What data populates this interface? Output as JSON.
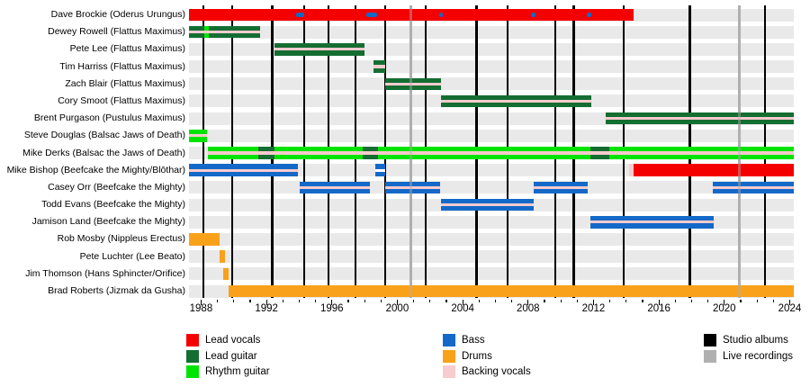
{
  "chart_data": {
    "type": "bar",
    "subtype": "gantt-membership-timeline",
    "description": "Band members timeline with instrument roles, studio album and live recording release lines",
    "x_axis": {
      "min": 1987.26,
      "max": 2024.25,
      "tick_years_start": 1988,
      "tick_years_end": 2024,
      "major_tick_step": 4,
      "minor_tick_step": 1,
      "major_tick_labels": [
        "1988",
        "1992",
        "1996",
        "2000",
        "2004",
        "2008",
        "2012",
        "2016",
        "2020",
        "2024"
      ]
    },
    "colors": {
      "lead_vocals": "#f40000",
      "lead_guitar": "#146e32",
      "rhythm_guitar": "#00e400",
      "bass": "#1469c8",
      "drums": "#f9a11b",
      "backing_vocals": "#f8cbce",
      "studio_albums": "#000000",
      "live_recordings": "#b0b0b0",
      "white": "#ffffff",
      "row_band": "#e9e9e9"
    },
    "members": [
      {
        "label": "Dave Brockie (Oderus Urungus)",
        "segments": [
          {
            "role": "lead_vocals",
            "start": 1987.26,
            "end": 2014.45
          }
        ],
        "overlays": [],
        "marks": [
          {
            "role": "bass",
            "start": 1993.8,
            "end": 1994.3
          },
          {
            "role": "bass",
            "start": 1998.1,
            "end": 1998.75
          },
          {
            "role": "bass",
            "start": 2002.55,
            "end": 2002.8
          },
          {
            "role": "bass",
            "start": 2008.2,
            "end": 2008.45
          },
          {
            "role": "bass",
            "start": 2011.6,
            "end": 2011.85
          }
        ]
      },
      {
        "label": "Dewey Rowell (Flattus Maximus)",
        "segments": [
          {
            "role": "lead_guitar",
            "start": 1987.26,
            "end": 1991.6,
            "stripe": "backing_vocals"
          }
        ],
        "overlays": [
          {
            "role": "rhythm_guitar",
            "start": 1988.2,
            "end": 1988.45
          }
        ],
        "marks": []
      },
      {
        "label": "Pete Lee (Flattus Maximus)",
        "segments": [
          {
            "role": "lead_guitar",
            "start": 1992.5,
            "end": 1998.0,
            "stripe": "backing_vocals"
          }
        ],
        "overlays": [],
        "marks": []
      },
      {
        "label": "Tim Harriss (Flattus Maximus)",
        "segments": [
          {
            "role": "lead_guitar",
            "start": 1998.55,
            "end": 1999.25,
            "stripe": "backing_vocals"
          }
        ],
        "overlays": [],
        "marks": []
      },
      {
        "label": "Zach Blair (Flattus Maximus)",
        "segments": [
          {
            "role": "lead_guitar",
            "start": 1999.25,
            "end": 2002.65,
            "stripe": "backing_vocals"
          }
        ],
        "overlays": [],
        "marks": []
      },
      {
        "label": "Cory Smoot (Flattus Maximus)",
        "segments": [
          {
            "role": "lead_guitar",
            "start": 2002.65,
            "end": 2011.85,
            "stripe": "backing_vocals"
          }
        ],
        "overlays": [],
        "marks": []
      },
      {
        "label": "Brent Purgason (Pustulus Maximus)",
        "segments": [
          {
            "role": "lead_guitar",
            "start": 2012.75,
            "end": 2024.25,
            "stripe": "backing_vocals"
          }
        ],
        "overlays": [],
        "marks": []
      },
      {
        "label": "Steve Douglas (Balsac Jaws of Death)",
        "segments": [
          {
            "role": "rhythm_guitar",
            "start": 1987.26,
            "end": 1988.35,
            "stripe": "backing_vocals"
          }
        ],
        "overlays": [],
        "marks": []
      },
      {
        "label": "Mike Derks (Balsac the Jaws of Death)",
        "segments": [
          {
            "role": "rhythm_guitar",
            "start": 1988.4,
            "end": 2024.25,
            "stripe": "backing_vocals"
          }
        ],
        "overlays": [
          {
            "role": "lead_guitar",
            "start": 1991.5,
            "end": 1992.5
          },
          {
            "role": "lead_guitar",
            "start": 1997.9,
            "end": 1998.8
          },
          {
            "role": "lead_guitar",
            "start": 2011.8,
            "end": 2012.95
          }
        ],
        "marks": []
      },
      {
        "label": "Mike Bishop (Beefcake the Mighty/Blōthar)",
        "segments": [
          {
            "role": "bass",
            "start": 1987.26,
            "end": 1993.9,
            "stripe": "backing_vocals"
          },
          {
            "role": "bass",
            "start": 1998.65,
            "end": 1999.25,
            "stripe": "white"
          },
          {
            "role": "backing_vocals",
            "start": 2014.2,
            "end": 2014.45
          },
          {
            "role": "lead_vocals",
            "start": 2014.45,
            "end": 2024.25
          }
        ],
        "overlays": [],
        "marks": []
      },
      {
        "label": "Casey Orr (Beefcake the Mighty)",
        "segments": [
          {
            "role": "bass",
            "start": 1994.05,
            "end": 1998.3,
            "stripe": "backing_vocals"
          },
          {
            "role": "bass",
            "start": 1999.25,
            "end": 2002.6,
            "stripe": "backing_vocals"
          },
          {
            "role": "bass",
            "start": 2008.35,
            "end": 2011.65,
            "stripe": "backing_vocals"
          },
          {
            "role": "bass",
            "start": 2019.3,
            "end": 2024.25,
            "stripe": "backing_vocals"
          }
        ],
        "overlays": [],
        "marks": []
      },
      {
        "label": "Todd Evans (Beefcake the Mighty)",
        "segments": [
          {
            "role": "bass",
            "start": 2002.65,
            "end": 2008.35,
            "stripe": "backing_vocals"
          }
        ],
        "overlays": [],
        "marks": []
      },
      {
        "label": "Jamison Land (Beefcake the Mighty)",
        "segments": [
          {
            "role": "bass",
            "start": 2011.8,
            "end": 2019.35,
            "stripe": "backing_vocals"
          }
        ],
        "overlays": [],
        "marks": []
      },
      {
        "label": "Rob Mosby (Nippleus Erectus)",
        "segments": [
          {
            "role": "drums",
            "start": 1987.26,
            "end": 1989.15
          }
        ],
        "overlays": [],
        "marks": []
      },
      {
        "label": "Pete Luchter (Lee Beato)",
        "segments": [
          {
            "role": "drums",
            "start": 1989.15,
            "end": 1989.45
          }
        ],
        "overlays": [],
        "marks": []
      },
      {
        "label": "Jim Thomson (Hans Sphincter/Orifice)",
        "segments": [
          {
            "role": "drums",
            "start": 1989.35,
            "end": 1989.7
          }
        ],
        "overlays": [],
        "marks": []
      },
      {
        "label": "Brad Roberts (Jizmak da Gusha)",
        "segments": [
          {
            "role": "drums",
            "start": 1989.7,
            "end": 2024.25
          }
        ],
        "overlays": [],
        "marks": []
      }
    ],
    "studio_album_years": [
      1988.15,
      1989.9,
      1992.35,
      1994.3,
      1995.8,
      1997.45,
      1999.25,
      2001.75,
      2004.85,
      2006.75,
      2009.65,
      2010.8,
      2013.85,
      2017.9,
      2022.5
    ],
    "live_recording_years": [
      2000.85,
      2020.9
    ]
  },
  "legend": {
    "columns": [
      [
        {
          "label": "Lead vocals",
          "color_key": "lead_vocals"
        },
        {
          "label": "Lead guitar",
          "color_key": "lead_guitar"
        },
        {
          "label": "Rhythm guitar",
          "color_key": "rhythm_guitar"
        }
      ],
      [
        {
          "label": "Bass",
          "color_key": "bass"
        },
        {
          "label": "Drums",
          "color_key": "drums"
        },
        {
          "label": "Backing vocals",
          "color_key": "backing_vocals"
        }
      ],
      [
        {
          "label": "Studio albums",
          "color_key": "studio_albums"
        },
        {
          "label": "Live recordings",
          "color_key": "live_recordings"
        }
      ]
    ]
  }
}
